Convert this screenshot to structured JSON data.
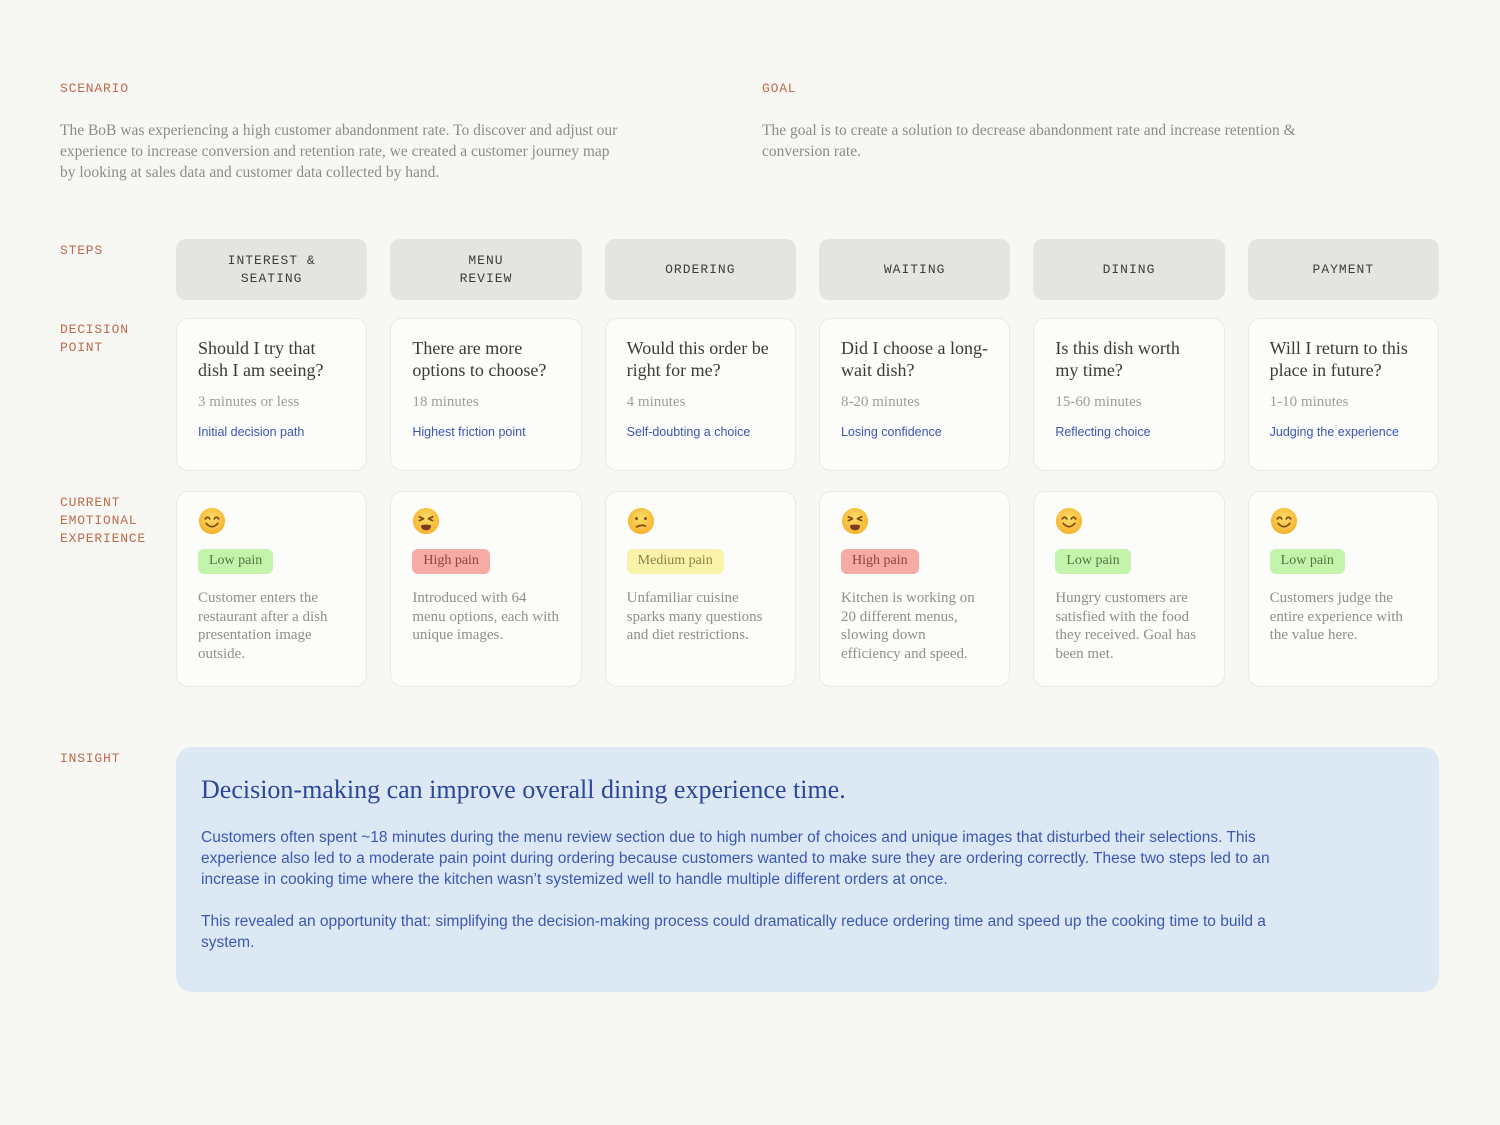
{
  "header": {
    "scenario": {
      "label": "SCENARIO",
      "body": "The BoB was experiencing a high customer abandonment rate. To discover and adjust our experience to increase conversion and retention rate, we created a customer journey map by looking at sales data and customer data collected by hand."
    },
    "goal": {
      "label": "GOAL",
      "body": "The goal is to create a solution to decrease abandonment rate and increase retention & conversion rate."
    }
  },
  "row_labels": {
    "steps": "STEPS",
    "decision_point": "DECISION POINT",
    "emotional_experience": "CURRENT EMOTIONAL EXPERIENCE",
    "insight": "INSIGHT"
  },
  "columns": [
    {
      "step": "INTEREST &\nSEATING",
      "decision": {
        "question": "Should I try that dish I am seeing?",
        "duration": "3 minutes or less",
        "tag": "Initial decision path"
      },
      "emotion": {
        "emoji_type": "smiling",
        "emoji_char": "😊",
        "badge": {
          "label": "Low pain",
          "level": "low"
        },
        "description": "Customer enters the restaurant after a dish presentation image outside."
      }
    },
    {
      "step": "MENU\nREVIEW",
      "decision": {
        "question": "There are more options to choose?",
        "duration": "18 minutes",
        "tag": "Highest friction point"
      },
      "emotion": {
        "emoji_type": "tired",
        "emoji_char": "😫",
        "badge": {
          "label": "High pain",
          "level": "high"
        },
        "description": "Introduced with 64 menu options, each with unique images."
      }
    },
    {
      "step": "ORDERING",
      "decision": {
        "question": "Would this order be right for me?",
        "duration": "4 minutes",
        "tag": "Self-doubting a choice"
      },
      "emotion": {
        "emoji_type": "confused",
        "emoji_char": "😕",
        "badge": {
          "label": "Medium pain",
          "level": "medium"
        },
        "description": "Unfamiliar cuisine sparks many questions and diet restrictions."
      }
    },
    {
      "step": "WAITING",
      "decision": {
        "question": "Did I choose a long-wait dish?",
        "duration": "8-20 minutes",
        "tag": "Losing confidence"
      },
      "emotion": {
        "emoji_type": "tired",
        "emoji_char": "😫",
        "badge": {
          "label": "High pain",
          "level": "high"
        },
        "description": "Kitchen is working on 20 different menus, slowing down efficiency and speed."
      }
    },
    {
      "step": "DINING",
      "decision": {
        "question": "Is this dish worth my time?",
        "duration": "15-60 minutes",
        "tag": "Reflecting choice"
      },
      "emotion": {
        "emoji_type": "smiling",
        "emoji_char": "😊",
        "badge": {
          "label": "Low pain",
          "level": "low"
        },
        "description": "Hungry customers are satisfied with the food they received. Goal has been met."
      }
    },
    {
      "step": "PAYMENT",
      "decision": {
        "question": "Will I return to this place in future?",
        "duration": "1-10 minutes",
        "tag": "Judging the experience"
      },
      "emotion": {
        "emoji_type": "smiling",
        "emoji_char": "😊",
        "badge": {
          "label": "Low pain",
          "level": "low"
        },
        "description": "Customers judge the entire experience with the value here."
      }
    }
  ],
  "insight": {
    "label": "INSIGHT",
    "title": "Decision-making can improve overall dining experience time.",
    "paragraphs": [
      "Customers often spent ~18 minutes during the menu review section due to high number of choices and unique images that disturbed their selections. This experience also led to a moderate pain point during ordering because customers wanted to make sure they are ordering correctly. These two steps led to an increase in cooking time where the kitchen wasn’t systemized well to handle multiple different orders at once.",
      "This revealed an opportunity that: simplifying the decision-making process could dramatically reduce ordering time and speed up the cooking time to build a system."
    ]
  },
  "colors": {
    "page_background": "#f7f7f4",
    "section_label": "#be6a4c",
    "step_pill_background": "#e4e4e2",
    "card_background": "#fcfcfa",
    "card_border": "#e9e9e5",
    "question_text": "#3a3a38",
    "muted_text": "#8f8f8c",
    "tag_blue": "#3c55b4",
    "badge_low_bg": "#c4f4ac",
    "badge_low_text": "#547440",
    "badge_medium_bg": "#f9f4aa",
    "badge_medium_text": "#8c8147",
    "badge_high_bg": "#f6aba4",
    "badge_high_text": "#8e463d",
    "insight_background": "#dde8f5",
    "insight_title": "#2c479b",
    "insight_body": "#3c58b2"
  }
}
